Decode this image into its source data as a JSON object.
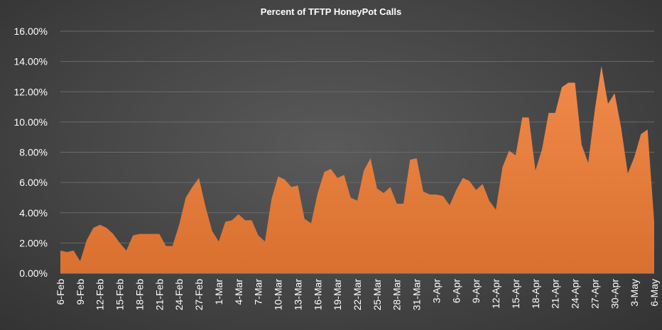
{
  "chart_data": {
    "type": "area",
    "title": "Percent of TFTP HoneyPot Calls",
    "xlabel": "",
    "ylabel": "",
    "ylim": [
      0,
      16
    ],
    "y_tick_values": [
      0,
      2,
      4,
      6,
      8,
      10,
      12,
      14,
      16
    ],
    "y_tick_labels": [
      "0.00%",
      "2.00%",
      "4.00%",
      "6.00%",
      "8.00%",
      "10.00%",
      "12.00%",
      "14.00%",
      "16.00%"
    ],
    "x_tick_labels": [
      "6-Feb",
      "9-Feb",
      "12-Feb",
      "15-Feb",
      "18-Feb",
      "21-Feb",
      "24-Feb",
      "27-Feb",
      "1-Mar",
      "4-Mar",
      "7-Mar",
      "10-Mar",
      "13-Mar",
      "16-Mar",
      "19-Mar",
      "22-Mar",
      "25-Mar",
      "28-Mar",
      "31-Mar",
      "3-Apr",
      "6-Apr",
      "9-Apr",
      "12-Apr",
      "15-Apr",
      "18-Apr",
      "21-Apr",
      "24-Apr",
      "27-Apr",
      "30-Apr",
      "3-May",
      "6-May"
    ],
    "series": [
      {
        "values": [
          1.5,
          1.4,
          1.5,
          0.8,
          2.2,
          3.0,
          3.2,
          3.0,
          2.6,
          2.0,
          1.5,
          2.5,
          2.6,
          2.6,
          2.6,
          2.6,
          1.8,
          1.8,
          3.2,
          5.0,
          5.7,
          6.3,
          4.4,
          2.8,
          2.1,
          3.4,
          3.5,
          3.9,
          3.5,
          3.5,
          2.5,
          2.1,
          4.9,
          6.4,
          6.2,
          5.7,
          5.8,
          3.6,
          3.3,
          5.3,
          6.7,
          6.9,
          6.3,
          6.5,
          5.0,
          4.8,
          6.8,
          7.6,
          5.6,
          5.3,
          5.7,
          4.6,
          4.6,
          7.5,
          7.6,
          5.4,
          5.2,
          5.2,
          5.1,
          4.5,
          5.5,
          6.3,
          6.1,
          5.5,
          5.9,
          4.8,
          4.2,
          7.0,
          8.1,
          7.8,
          10.3,
          10.3,
          6.8,
          8.2,
          10.6,
          10.6,
          12.3,
          12.6,
          12.6,
          8.5,
          7.3,
          10.8,
          13.7,
          11.2,
          11.9,
          9.6,
          6.6,
          7.7,
          9.2,
          9.5,
          3.4
        ]
      }
    ],
    "colors": {
      "fill_top": "#f08a4b",
      "fill_bottom": "#d9702f",
      "gridline": "#6a6a6a",
      "axis": "#8a8a8a"
    }
  }
}
